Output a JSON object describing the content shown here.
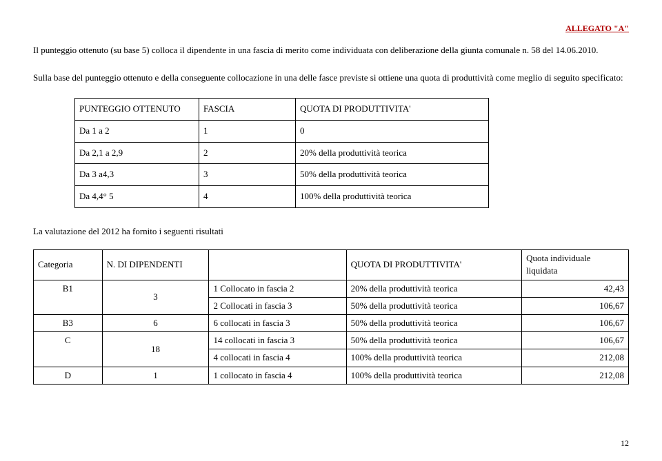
{
  "header": {
    "right": "ALLEGATO \"A\""
  },
  "para1": "Il punteggio ottenuto (su base 5) colloca il dipendente in una fascia di merito come  individuata con deliberazione della giunta comunale n. 58 del 14.06.2010.",
  "para2": "Sulla base del punteggio ottenuto e della conseguente collocazione in una delle fasce previste si ottiene una quota di produttività come meglio di seguito specificato:",
  "t1": {
    "h1": "PUNTEGGIO OTTENUTO",
    "h2": "FASCIA",
    "h3": "QUOTA DI PRODUTTIVITA'",
    "rows": [
      {
        "a": "Da 1 a 2",
        "b": "1",
        "c": "0"
      },
      {
        "a": "Da 2,1 a 2,9",
        "b": "2",
        "c": "20% della produttività teorica"
      },
      {
        "a": "Da 3 a4,3",
        "b": "3",
        "c": "50% della produttività teorica"
      },
      {
        "a": "Da 4,4° 5",
        "b": "4",
        "c": "100% della produttività teorica"
      }
    ]
  },
  "subhead": "La valutazione del 2012 ha fornito i seguenti risultati",
  "t2": {
    "h1": "Categoria",
    "h2": "N. DI DIPENDENTI",
    "h3": "",
    "h4": "QUOTA DI PRODUTTIVITA'",
    "h5": "Quota individuale liquidata",
    "rows": [
      {
        "c1": "B1",
        "c2": "3",
        "c3": "1 Collocato in fascia 2",
        "c4": "20% della produttività teorica",
        "c5": "42,43",
        "rowspanC1C2": 2
      },
      {
        "c3": "2 Collocati in fascia 3",
        "c4": "50% della produttività teorica",
        "c5": "106,67"
      },
      {
        "c1": "B3",
        "c2": "6",
        "c3": "6 collocati in fascia 3",
        "c4": "50% della produttività teorica",
        "c5": "106,67"
      },
      {
        "c1": "C",
        "c2": "18",
        "c3": "14 collocati in fascia 3",
        "c4": "50% della produttività teorica",
        "c5": "106,67",
        "rowspanC1C2": 2
      },
      {
        "c3": "4 collocati in fascia 4",
        "c4": "100% della produttività teorica",
        "c5": "212,08"
      },
      {
        "c1": "D",
        "c2": "1",
        "c3": "1 collocato in fascia 4",
        "c4": "100% della produttività teorica",
        "c5": "212,08"
      }
    ]
  },
  "pagenum": "12"
}
